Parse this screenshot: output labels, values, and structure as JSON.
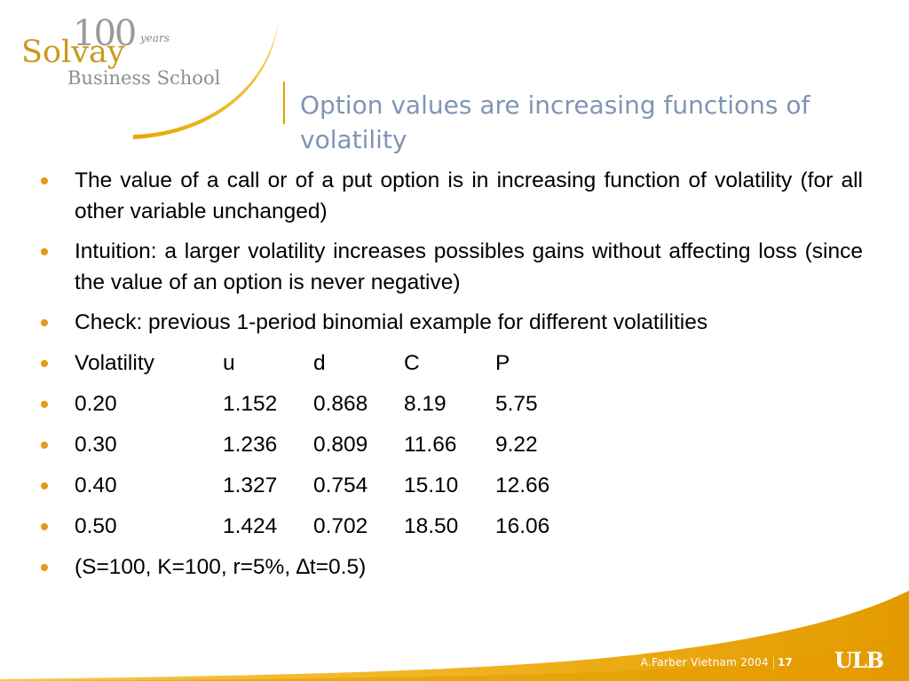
{
  "logo": {
    "anniversary": "100",
    "years": "years",
    "name": "Solvay",
    "subtitle": "Business School"
  },
  "slide": {
    "title": "Option values are increasing functions of volatility",
    "bullets": [
      "The value of a call or of a put option is in increasing function of volatility (for all other variable unchanged)",
      "Intuition: a larger volatility increases possibles gains without affecting loss (since the value of an option is never negative)",
      "Check: previous 1-period binomial example for different  volatilities"
    ],
    "table": {
      "header": [
        "Volatility",
        "u",
        "d",
        "C",
        "P"
      ],
      "rows": [
        [
          "0.20",
          "1.152",
          "0.868",
          "8.19",
          "5.75"
        ],
        [
          "0.30",
          "1.236",
          "0.809",
          "11.66",
          "9.22"
        ],
        [
          "0.40",
          "1.327",
          "0.754",
          "15.10",
          "12.66"
        ],
        [
          "0.50",
          "1.424",
          "0.702",
          "18.50",
          "16.06"
        ]
      ]
    },
    "footnote": "(S=100, K=100, r=5%, ∆t=0.5)"
  },
  "footer": {
    "author": "A.Farber  Vietnam 2004",
    "page": "17",
    "institution_logo": "ULB"
  },
  "colors": {
    "accent": "#e39a17",
    "title": "#7f95b5",
    "gold": "#c99a1c"
  }
}
